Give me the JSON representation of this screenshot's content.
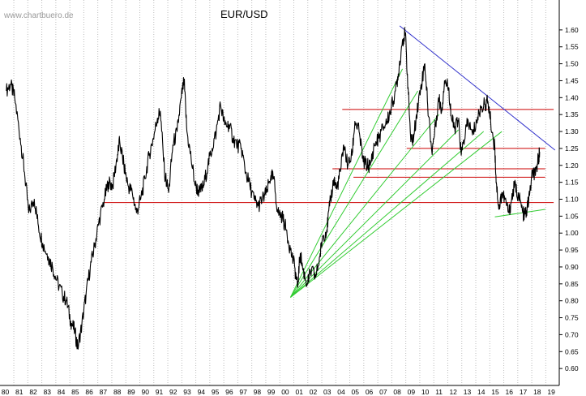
{
  "watermark": "www.chartbuero.de",
  "chart_data": {
    "type": "line",
    "title": "EUR/USD",
    "xlabel": "",
    "ylabel": "",
    "ylim": [
      0.55,
      1.65
    ],
    "grid": "vertical-dotted",
    "x_tick_labels": [
      "80",
      "81",
      "82",
      "83",
      "84",
      "85",
      "86",
      "87",
      "88",
      "89",
      "90",
      "91",
      "92",
      "93",
      "94",
      "95",
      "96",
      "97",
      "98",
      "99",
      "00",
      "01",
      "02",
      "03",
      "04",
      "05",
      "06",
      "07",
      "08",
      "09",
      "10",
      "11",
      "12",
      "13",
      "14",
      "15",
      "16",
      "17",
      "18",
      "19"
    ],
    "y_ticks": [
      0.6,
      0.65,
      0.7,
      0.75,
      0.8,
      0.85,
      0.9,
      0.95,
      1.0,
      1.05,
      1.1,
      1.15,
      1.2,
      1.25,
      1.3,
      1.35,
      1.4,
      1.45,
      1.5,
      1.55,
      1.6
    ],
    "colors": {
      "price": "#000000",
      "support_resistance": "#cc0000",
      "fan_lines": "#33cc33",
      "downtrend": "#3333cc",
      "grid": "#bbbbbb"
    },
    "series": [
      {
        "values": [
          [
            1980.0,
            1.42
          ],
          [
            1980.3,
            1.44
          ],
          [
            1980.6,
            1.4
          ],
          [
            1981.0,
            1.28
          ],
          [
            1981.3,
            1.18
          ],
          [
            1981.6,
            1.06
          ],
          [
            1982.0,
            1.1
          ],
          [
            1982.3,
            1.02
          ],
          [
            1982.6,
            0.97
          ],
          [
            1983.0,
            0.93
          ],
          [
            1983.3,
            0.9
          ],
          [
            1983.6,
            0.86
          ],
          [
            1984.0,
            0.82
          ],
          [
            1984.3,
            0.8
          ],
          [
            1984.6,
            0.74
          ],
          [
            1984.9,
            0.71
          ],
          [
            1985.1,
            0.66
          ],
          [
            1985.4,
            0.73
          ],
          [
            1985.7,
            0.82
          ],
          [
            1986.0,
            0.9
          ],
          [
            1986.3,
            0.96
          ],
          [
            1986.6,
            1.03
          ],
          [
            1987.0,
            1.1
          ],
          [
            1987.3,
            1.15
          ],
          [
            1987.6,
            1.14
          ],
          [
            1987.9,
            1.22
          ],
          [
            1988.1,
            1.27
          ],
          [
            1988.4,
            1.2
          ],
          [
            1988.7,
            1.14
          ],
          [
            1989.0,
            1.12
          ],
          [
            1989.3,
            1.06
          ],
          [
            1989.6,
            1.1
          ],
          [
            1989.9,
            1.16
          ],
          [
            1990.2,
            1.23
          ],
          [
            1990.5,
            1.28
          ],
          [
            1990.8,
            1.34
          ],
          [
            1991.0,
            1.36
          ],
          [
            1991.3,
            1.18
          ],
          [
            1991.6,
            1.12
          ],
          [
            1991.9,
            1.26
          ],
          [
            1992.2,
            1.3
          ],
          [
            1992.5,
            1.4
          ],
          [
            1992.7,
            1.45
          ],
          [
            1992.9,
            1.3
          ],
          [
            1993.2,
            1.22
          ],
          [
            1993.5,
            1.14
          ],
          [
            1993.8,
            1.12
          ],
          [
            1994.1,
            1.14
          ],
          [
            1994.4,
            1.2
          ],
          [
            1994.7,
            1.25
          ],
          [
            1995.0,
            1.3
          ],
          [
            1995.3,
            1.38
          ],
          [
            1995.6,
            1.32
          ],
          [
            1995.9,
            1.32
          ],
          [
            1996.2,
            1.28
          ],
          [
            1996.5,
            1.26
          ],
          [
            1996.8,
            1.25
          ],
          [
            1997.1,
            1.18
          ],
          [
            1997.4,
            1.14
          ],
          [
            1997.7,
            1.1
          ],
          [
            1998.0,
            1.08
          ],
          [
            1998.3,
            1.1
          ],
          [
            1998.6,
            1.12
          ],
          [
            1998.9,
            1.17
          ],
          [
            1999.1,
            1.16
          ],
          [
            1999.4,
            1.06
          ],
          [
            1999.7,
            1.05
          ],
          [
            2000.0,
            1.01
          ],
          [
            2000.3,
            0.95
          ],
          [
            2000.6,
            0.9
          ],
          [
            2000.8,
            0.84
          ],
          [
            2001.0,
            0.94
          ],
          [
            2001.2,
            0.89
          ],
          [
            2001.5,
            0.85
          ],
          [
            2001.8,
            0.89
          ],
          [
            2002.1,
            0.87
          ],
          [
            2002.4,
            0.93
          ],
          [
            2002.6,
            0.99
          ],
          [
            2002.9,
            1.01
          ],
          [
            2003.1,
            1.08
          ],
          [
            2003.4,
            1.16
          ],
          [
            2003.6,
            1.13
          ],
          [
            2003.9,
            1.19
          ],
          [
            2004.1,
            1.26
          ],
          [
            2004.4,
            1.2
          ],
          [
            2004.7,
            1.23
          ],
          [
            2004.9,
            1.33
          ],
          [
            2005.2,
            1.3
          ],
          [
            2005.5,
            1.21
          ],
          [
            2005.8,
            1.2
          ],
          [
            2006.0,
            1.2
          ],
          [
            2006.3,
            1.26
          ],
          [
            2006.6,
            1.28
          ],
          [
            2006.9,
            1.31
          ],
          [
            2007.2,
            1.33
          ],
          [
            2007.5,
            1.37
          ],
          [
            2007.8,
            1.42
          ],
          [
            2008.0,
            1.47
          ],
          [
            2008.3,
            1.57
          ],
          [
            2008.5,
            1.59
          ],
          [
            2008.7,
            1.43
          ],
          [
            2008.9,
            1.27
          ],
          [
            2009.1,
            1.28
          ],
          [
            2009.3,
            1.35
          ],
          [
            2009.6,
            1.43
          ],
          [
            2009.9,
            1.5
          ],
          [
            2010.1,
            1.38
          ],
          [
            2010.4,
            1.24
          ],
          [
            2010.6,
            1.3
          ],
          [
            2010.9,
            1.4
          ],
          [
            2011.1,
            1.36
          ],
          [
            2011.3,
            1.45
          ],
          [
            2011.6,
            1.43
          ],
          [
            2011.8,
            1.34
          ],
          [
            2012.0,
            1.31
          ],
          [
            2012.3,
            1.33
          ],
          [
            2012.5,
            1.23
          ],
          [
            2012.8,
            1.3
          ],
          [
            2013.0,
            1.33
          ],
          [
            2013.3,
            1.29
          ],
          [
            2013.6,
            1.33
          ],
          [
            2013.9,
            1.37
          ],
          [
            2014.2,
            1.38
          ],
          [
            2014.4,
            1.39
          ],
          [
            2014.6,
            1.33
          ],
          [
            2014.9,
            1.25
          ],
          [
            2015.0,
            1.15
          ],
          [
            2015.2,
            1.07
          ],
          [
            2015.4,
            1.12
          ],
          [
            2015.6,
            1.1
          ],
          [
            2015.9,
            1.06
          ],
          [
            2016.1,
            1.1
          ],
          [
            2016.3,
            1.14
          ],
          [
            2016.6,
            1.11
          ],
          [
            2016.9,
            1.06
          ],
          [
            2017.0,
            1.05
          ],
          [
            2017.2,
            1.07
          ],
          [
            2017.4,
            1.12
          ],
          [
            2017.6,
            1.18
          ],
          [
            2017.8,
            1.17
          ],
          [
            2018.0,
            1.22
          ],
          [
            2018.1,
            1.24
          ]
        ]
      }
    ],
    "horizontal_lines": [
      {
        "y": 1.365,
        "x_start": 2004.0,
        "x_end": 2019.1
      },
      {
        "y": 1.25,
        "x_start": 2008.6,
        "x_end": 2018.5
      },
      {
        "y": 1.19,
        "x_start": 2003.3,
        "x_end": 2018.5
      },
      {
        "y": 1.165,
        "x_start": 2004.8,
        "x_end": 2018.5
      },
      {
        "y": 1.09,
        "x_start": 1987.0,
        "x_end": 2019.1
      }
    ],
    "trend_lines": [
      {
        "kind": "downtrend",
        "from": [
          2008.1,
          1.612
        ],
        "to": [
          2019.2,
          1.245
        ]
      },
      {
        "kind": "support",
        "from": [
          2014.9,
          1.048
        ],
        "to": [
          2018.5,
          1.07
        ]
      },
      {
        "kind": "fan",
        "from": [
          2000.3,
          0.81
        ],
        "to": [
          2008.3,
          1.485
        ]
      },
      {
        "kind": "fan",
        "from": [
          2000.3,
          0.81
        ],
        "to": [
          2009.4,
          1.42
        ]
      },
      {
        "kind": "fan",
        "from": [
          2000.3,
          0.81
        ],
        "to": [
          2010.9,
          1.35
        ]
      },
      {
        "kind": "fan",
        "from": [
          2000.3,
          0.81
        ],
        "to": [
          2012.3,
          1.305
        ]
      },
      {
        "kind": "fan",
        "from": [
          2000.3,
          0.81
        ],
        "to": [
          2014.1,
          1.3
        ]
      },
      {
        "kind": "fan",
        "from": [
          2000.3,
          0.81
        ],
        "to": [
          2015.4,
          1.3
        ]
      }
    ]
  }
}
